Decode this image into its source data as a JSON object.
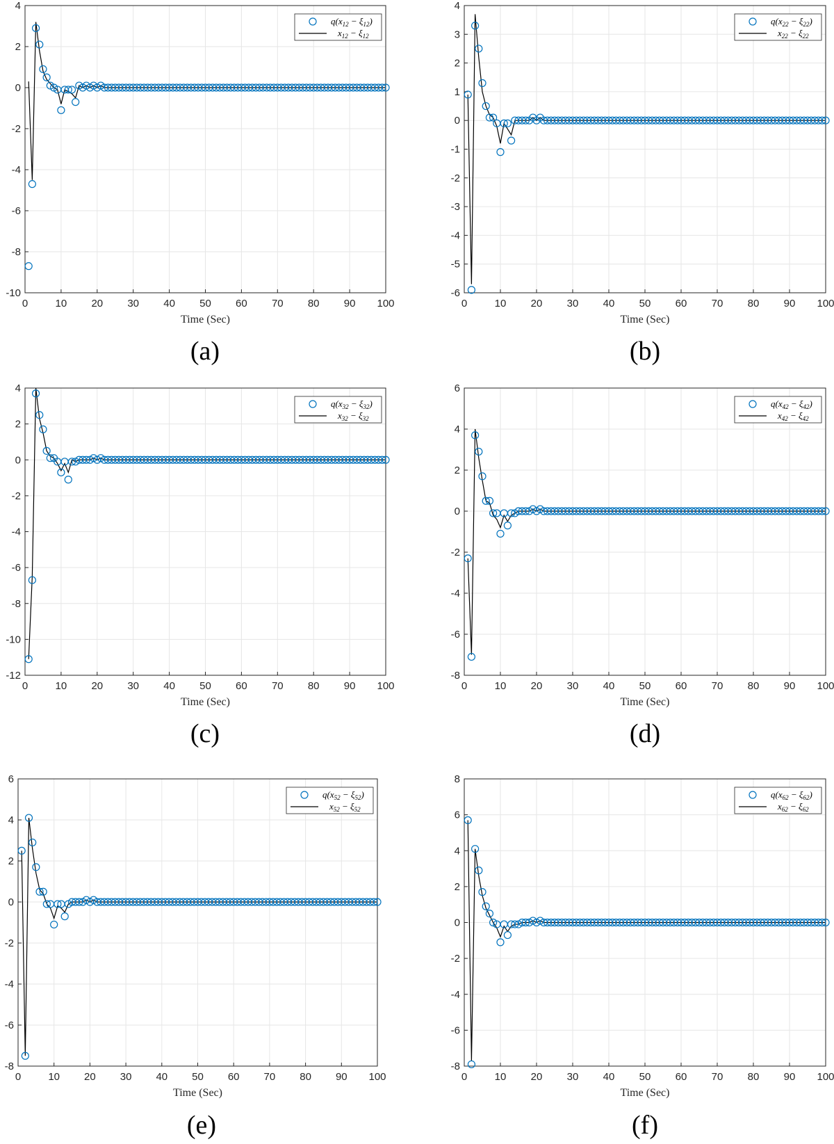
{
  "figure": {
    "colors": {
      "markers": "#0072BD",
      "line": "#000000",
      "grid": "#e6e6e6",
      "axes": "#262626"
    },
    "q_values": [
      [
        -8.7,
        -4.7,
        2.9,
        2.1,
        0.9,
        0.5,
        0.1,
        0.0,
        -0.1,
        -1.1,
        -0.1,
        -0.1,
        -0.1,
        -0.7,
        0.1,
        0.0,
        0.1,
        0.0,
        0.1,
        0.0,
        0.1
      ],
      [
        0.9,
        -5.9,
        3.3,
        2.5,
        1.3,
        0.5,
        0.1,
        0.1,
        -0.1,
        -1.1,
        -0.1,
        -0.1,
        -0.7,
        0.0,
        0.0,
        0.0,
        0.0,
        0.0,
        0.1,
        0.0,
        0.1
      ],
      [
        -11.1,
        -6.7,
        3.7,
        2.5,
        1.7,
        0.5,
        0.1,
        0.1,
        -0.1,
        -0.7,
        -0.1,
        -1.1,
        -0.1,
        -0.1,
        0.0,
        0.0,
        0.0,
        0.0,
        0.1,
        0.0,
        0.1
      ],
      [
        -2.3,
        -7.1,
        3.7,
        2.9,
        1.7,
        0.5,
        0.5,
        -0.1,
        -0.1,
        -1.1,
        -0.1,
        -0.7,
        -0.1,
        -0.1,
        0.0,
        0.0,
        0.0,
        0.0,
        0.1,
        0.0,
        0.1
      ],
      [
        2.5,
        -7.5,
        4.1,
        2.9,
        1.7,
        0.5,
        0.5,
        -0.1,
        -0.1,
        -1.1,
        -0.1,
        -0.1,
        -0.7,
        -0.1,
        0.0,
        0.0,
        0.0,
        0.0,
        0.1,
        0.0,
        0.1
      ],
      [
        5.7,
        -7.9,
        4.1,
        2.9,
        1.7,
        0.9,
        0.5,
        0.0,
        -0.1,
        -1.1,
        -0.1,
        -0.7,
        -0.1,
        -0.1,
        -0.1,
        0.0,
        0.0,
        0.0,
        0.1,
        0.0,
        0.1
      ]
    ],
    "x_values": [
      [
        0.3,
        -4.5,
        3.2,
        1.8,
        0.8,
        0.4,
        0.2,
        0.0,
        -0.1,
        -0.8,
        -0.1,
        -0.2,
        -0.3,
        -0.5,
        0.1,
        0.0,
        0.1,
        0.0,
        0.1,
        0.0,
        0.1
      ],
      [
        0.9,
        -5.7,
        3.7,
        2.2,
        1.0,
        0.5,
        0.2,
        0.1,
        -0.2,
        -0.8,
        -0.1,
        -0.3,
        -0.5,
        0.0,
        0.0,
        0.0,
        0.0,
        0.0,
        0.1,
        0.0,
        0.1
      ],
      [
        -11.1,
        -6.5,
        4.0,
        2.3,
        1.5,
        0.5,
        0.2,
        0.1,
        -0.2,
        -0.6,
        -0.2,
        -0.7,
        0.0,
        -0.1,
        0.0,
        0.0,
        0.0,
        0.0,
        0.1,
        0.0,
        0.1
      ],
      [
        -2.3,
        -7.0,
        4.0,
        2.6,
        1.5,
        0.5,
        0.4,
        -0.2,
        -0.4,
        -0.8,
        -0.2,
        -0.5,
        -0.2,
        -0.1,
        0.0,
        0.0,
        0.0,
        0.0,
        0.1,
        0.0,
        0.1
      ],
      [
        2.5,
        -7.5,
        4.1,
        2.6,
        1.4,
        0.6,
        0.4,
        -0.1,
        -0.3,
        -0.8,
        -0.2,
        -0.3,
        -0.5,
        -0.1,
        0.0,
        0.0,
        0.0,
        0.0,
        0.1,
        0.0,
        0.1
      ],
      [
        5.7,
        -7.7,
        4.1,
        2.6,
        1.5,
        0.8,
        0.4,
        0.0,
        -0.3,
        -0.8,
        -0.2,
        -0.5,
        -0.2,
        -0.1,
        -0.1,
        0.0,
        0.0,
        0.0,
        0.1,
        0.0,
        0.1
      ]
    ]
  },
  "chart_data": [
    {
      "type": "scatter",
      "panel": "(a)",
      "xlabel": "Time (Sec)",
      "ylabel": "",
      "xlim": [
        0,
        100
      ],
      "ylim": [
        -10,
        4
      ],
      "x_ticks": [
        "0",
        "10",
        "20",
        "30",
        "40",
        "50",
        "60",
        "70",
        "80",
        "90",
        "100"
      ],
      "y_ticks": [
        "-10",
        "-8",
        "-6",
        "-4",
        "-2",
        "0",
        "2",
        "4"
      ],
      "grid": true,
      "legend_position": "top-right",
      "series": [
        {
          "name": "q(x12 − ξ12)",
          "style": "circle markers",
          "note": "x = 1..100; values after x=21 are 0"
        },
        {
          "name": "x12 − ξ12",
          "style": "solid line"
        }
      ]
    },
    {
      "type": "scatter",
      "panel": "(b)",
      "xlabel": "Time (Sec)",
      "ylabel": "",
      "xlim": [
        0,
        100
      ],
      "ylim": [
        -6,
        4
      ],
      "x_ticks": [
        "0",
        "10",
        "20",
        "30",
        "40",
        "50",
        "60",
        "70",
        "80",
        "90",
        "100"
      ],
      "y_ticks": [
        "-6",
        "-5",
        "-4",
        "-3",
        "-2",
        "-1",
        "0",
        "1",
        "2",
        "3",
        "4"
      ],
      "grid": true,
      "legend_position": "top-right",
      "series": [
        {
          "name": "q(x22 − ξ22)",
          "style": "circle markers"
        },
        {
          "name": "x22 − ξ22",
          "style": "solid line"
        }
      ]
    },
    {
      "type": "scatter",
      "panel": "(c)",
      "xlabel": "Time (Sec)",
      "ylabel": "",
      "xlim": [
        0,
        100
      ],
      "ylim": [
        -12,
        4
      ],
      "x_ticks": [
        "0",
        "10",
        "20",
        "30",
        "40",
        "50",
        "60",
        "70",
        "80",
        "90",
        "100"
      ],
      "y_ticks": [
        "-12",
        "-10",
        "-8",
        "-6",
        "-4",
        "-2",
        "0",
        "2",
        "4"
      ],
      "grid": true,
      "legend_position": "top-right",
      "series": [
        {
          "name": "q(x32 − ξ32)",
          "style": "circle markers"
        },
        {
          "name": "x32 − ξ32",
          "style": "solid line"
        }
      ]
    },
    {
      "type": "scatter",
      "panel": "(d)",
      "xlabel": "Time (Sec)",
      "ylabel": "",
      "xlim": [
        0,
        100
      ],
      "ylim": [
        -8,
        6
      ],
      "x_ticks": [
        "0",
        "10",
        "20",
        "30",
        "40",
        "50",
        "60",
        "70",
        "80",
        "90",
        "100"
      ],
      "y_ticks": [
        "-8",
        "-6",
        "-4",
        "-2",
        "0",
        "2",
        "4",
        "6"
      ],
      "grid": true,
      "legend_position": "top-right",
      "series": [
        {
          "name": "q(x42 − ξ42)",
          "style": "circle markers"
        },
        {
          "name": "x42 − ξ42",
          "style": "solid line"
        }
      ]
    },
    {
      "type": "scatter",
      "panel": "(e)",
      "xlabel": "Time (Sec)",
      "ylabel": "",
      "xlim": [
        0,
        100
      ],
      "ylim": [
        -8,
        6
      ],
      "x_ticks": [
        "0",
        "10",
        "20",
        "30",
        "40",
        "50",
        "60",
        "70",
        "80",
        "90",
        "100"
      ],
      "y_ticks": [
        "-8",
        "-6",
        "-4",
        "-2",
        "0",
        "2",
        "4",
        "6"
      ],
      "grid": true,
      "legend_position": "top-right",
      "series": [
        {
          "name": "q(x52 − ξ52)",
          "style": "circle markers"
        },
        {
          "name": "x52 − ξ52",
          "style": "solid line"
        }
      ]
    },
    {
      "type": "scatter",
      "panel": "(f)",
      "xlabel": "Time (Sec)",
      "ylabel": "",
      "xlim": [
        0,
        100
      ],
      "ylim": [
        -8,
        8
      ],
      "x_ticks": [
        "0",
        "10",
        "20",
        "30",
        "40",
        "50",
        "60",
        "70",
        "80",
        "90",
        "100"
      ],
      "y_ticks": [
        "-8",
        "-6",
        "-4",
        "-2",
        "0",
        "2",
        "4",
        "6",
        "8"
      ],
      "grid": true,
      "legend_position": "top-right",
      "series": [
        {
          "name": "q(x62 − ξ62)",
          "style": "circle markers"
        },
        {
          "name": "x62 − ξ62",
          "style": "solid line"
        }
      ]
    }
  ],
  "legend_parts": [
    {
      "q_prefix": "q(",
      "x": "x",
      "sub": "12",
      "minus": " − ",
      "xi": "ξ",
      "close": ")"
    },
    {
      "q_prefix": "q(",
      "x": "x",
      "sub": "22",
      "minus": " − ",
      "xi": "ξ",
      "close": ")"
    },
    {
      "q_prefix": "q(",
      "x": "x",
      "sub": "32",
      "minus": " − ",
      "xi": "ξ",
      "close": ")"
    },
    {
      "q_prefix": "q(",
      "x": "x",
      "sub": "42",
      "minus": " − ",
      "xi": "ξ",
      "close": ")"
    },
    {
      "q_prefix": "q(",
      "x": "x",
      "sub": "52",
      "minus": " − ",
      "xi": "ξ",
      "close": ")"
    },
    {
      "q_prefix": "q(",
      "x": "x",
      "sub": "62",
      "minus": " − ",
      "xi": "ξ",
      "close": ")"
    }
  ]
}
